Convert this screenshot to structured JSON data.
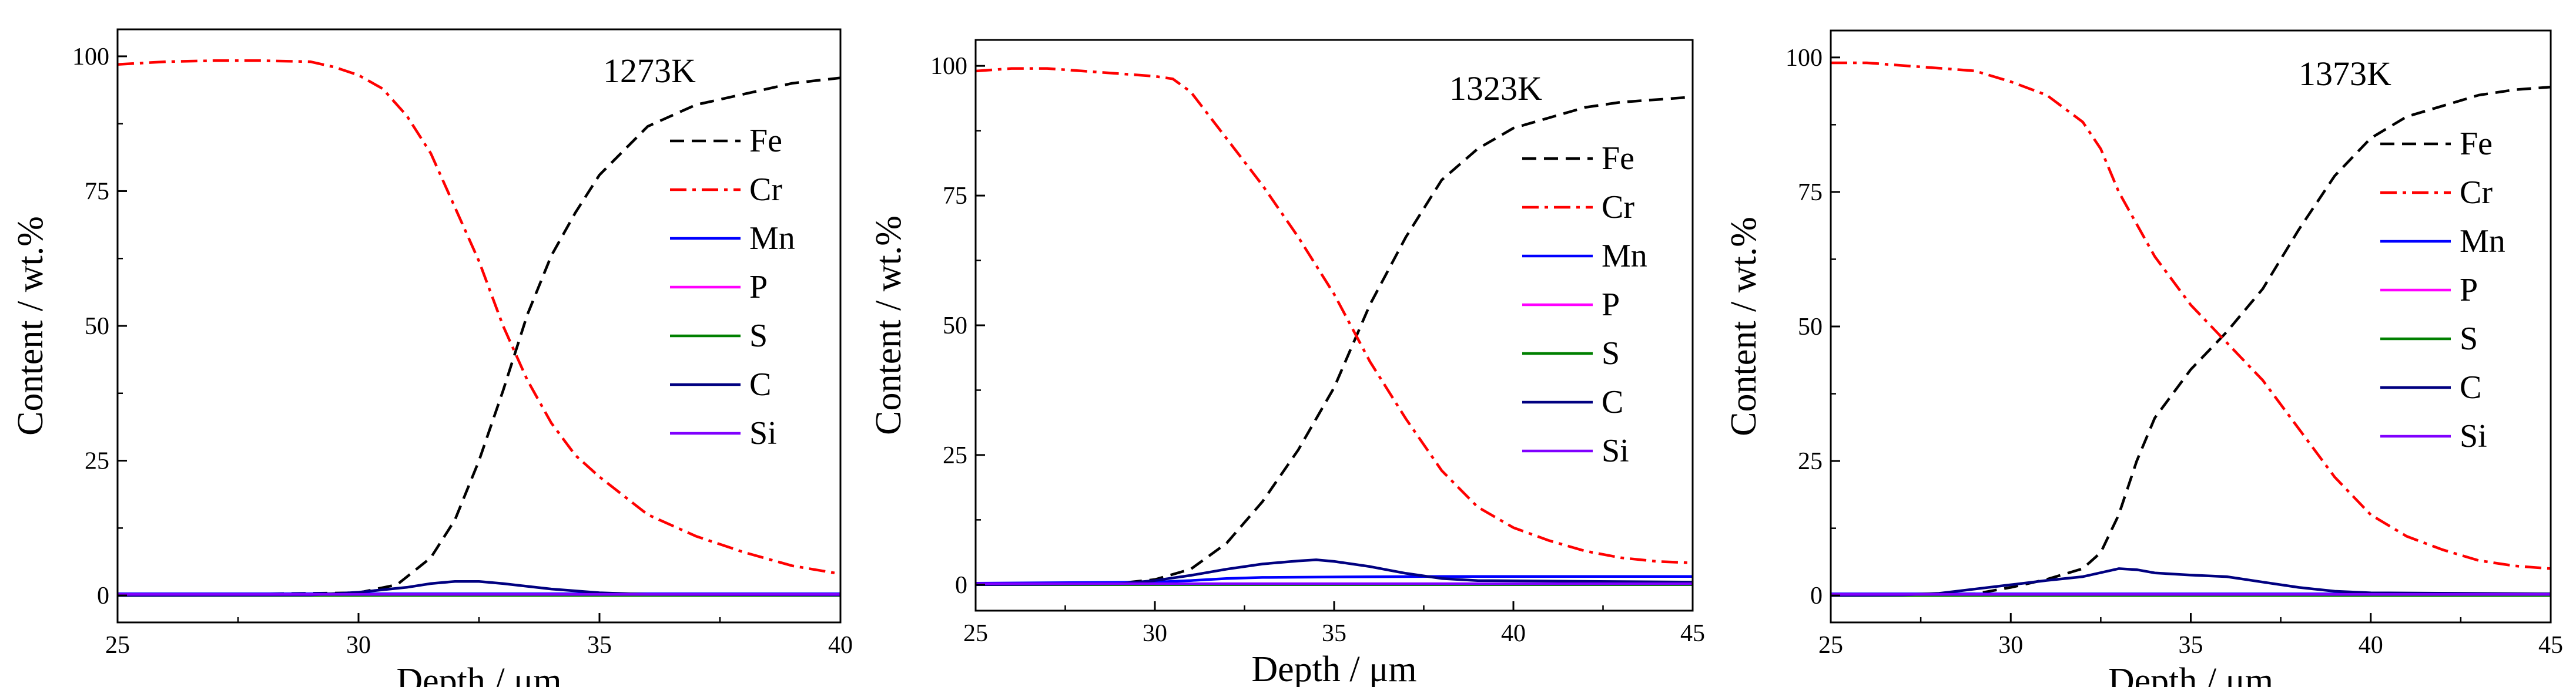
{
  "chart_data": [
    {
      "type": "line",
      "annotation": "1273K",
      "xlabel": "Depth / μm",
      "ylabel": "Content / wt.%",
      "xlim": [
        25,
        40
      ],
      "ylim": [
        -5,
        105
      ],
      "xticks": [
        25,
        30,
        35,
        40
      ],
      "yticks": [
        0,
        25,
        50,
        75,
        100
      ],
      "legend_position": "right",
      "series": [
        {
          "name": "Fe",
          "color": "#000000",
          "style": "dash",
          "points": [
            [
              25,
              0
            ],
            [
              30,
              0.5
            ],
            [
              30.8,
              2
            ],
            [
              31.5,
              7
            ],
            [
              32,
              14
            ],
            [
              32.5,
              25
            ],
            [
              33,
              38
            ],
            [
              33.5,
              52
            ],
            [
              34,
              63
            ],
            [
              34.5,
              71
            ],
            [
              35,
              78
            ],
            [
              36,
              87
            ],
            [
              37,
              91
            ],
            [
              38,
              93
            ],
            [
              39,
              95
            ],
            [
              40,
              96
            ]
          ]
        },
        {
          "name": "Cr",
          "color": "#ff0000",
          "style": "dashdot",
          "points": [
            [
              25,
              98.5
            ],
            [
              26,
              99
            ],
            [
              27,
              99.2
            ],
            [
              28,
              99.2
            ],
            [
              29,
              99
            ],
            [
              29.5,
              98
            ],
            [
              30,
              96.5
            ],
            [
              30.5,
              94
            ],
            [
              31,
              89
            ],
            [
              31.5,
              82
            ],
            [
              32,
              72
            ],
            [
              32.5,
              62
            ],
            [
              33,
              50
            ],
            [
              33.5,
              40
            ],
            [
              34,
              32
            ],
            [
              34.5,
              26
            ],
            [
              35,
              22
            ],
            [
              36,
              15
            ],
            [
              37,
              11
            ],
            [
              38,
              8
            ],
            [
              39,
              5.5
            ],
            [
              40,
              4
            ]
          ]
        },
        {
          "name": "Mn",
          "color": "#0000ff",
          "style": "solid",
          "points": [
            [
              25,
              0.3
            ],
            [
              30,
              0.3
            ],
            [
              35,
              0.3
            ],
            [
              40,
              0.3
            ]
          ]
        },
        {
          "name": "P",
          "color": "#ff00ff",
          "style": "solid",
          "points": [
            [
              25,
              0.1
            ],
            [
              40,
              0.1
            ]
          ]
        },
        {
          "name": "S",
          "color": "#008000",
          "style": "solid",
          "points": [
            [
              25,
              0
            ],
            [
              40,
              0
            ]
          ]
        },
        {
          "name": "C",
          "color": "#000080",
          "style": "solid",
          "points": [
            [
              25,
              0
            ],
            [
              29,
              0.1
            ],
            [
              30,
              0.6
            ],
            [
              31,
              1.5
            ],
            [
              31.5,
              2.2
            ],
            [
              32,
              2.6
            ],
            [
              32.5,
              2.6
            ],
            [
              33,
              2.2
            ],
            [
              34,
              1.2
            ],
            [
              35,
              0.5
            ],
            [
              36,
              0.2
            ],
            [
              40,
              0.1
            ]
          ]
        },
        {
          "name": "Si",
          "color": "#8000ff",
          "style": "solid",
          "points": [
            [
              25,
              0.2
            ],
            [
              40,
              0.2
            ]
          ]
        }
      ]
    },
    {
      "type": "line",
      "annotation": "1323K",
      "xlabel": "Depth / μm",
      "ylabel": "Content / wt.%",
      "xlim": [
        25,
        45
      ],
      "ylim": [
        -5,
        105
      ],
      "xticks": [
        25,
        30,
        35,
        40,
        45
      ],
      "yticks": [
        0,
        25,
        50,
        75,
        100
      ],
      "legend_position": "right",
      "series": [
        {
          "name": "Fe",
          "color": "#000000",
          "style": "dash",
          "points": [
            [
              25,
              0
            ],
            [
              29,
              0.3
            ],
            [
              30,
              1
            ],
            [
              31,
              3
            ],
            [
              32,
              8
            ],
            [
              33,
              16
            ],
            [
              34,
              26
            ],
            [
              35,
              38
            ],
            [
              36,
              54
            ],
            [
              37,
              67
            ],
            [
              38,
              78
            ],
            [
              39,
              84
            ],
            [
              40,
              88
            ],
            [
              41,
              90
            ],
            [
              42,
              92
            ],
            [
              43,
              93
            ],
            [
              44,
              93.5
            ],
            [
              45,
              94
            ]
          ]
        },
        {
          "name": "Cr",
          "color": "#ff0000",
          "style": "dashdot",
          "points": [
            [
              25,
              99
            ],
            [
              26,
              99.5
            ],
            [
              27,
              99.5
            ],
            [
              28,
              99
            ],
            [
              29,
              98.5
            ],
            [
              30,
              98
            ],
            [
              30.5,
              97.5
            ],
            [
              31,
              95
            ],
            [
              32,
              86
            ],
            [
              33,
              77
            ],
            [
              34,
              67
            ],
            [
              35,
              56
            ],
            [
              36,
              43
            ],
            [
              37,
              32
            ],
            [
              38,
              22
            ],
            [
              39,
              15
            ],
            [
              40,
              11
            ],
            [
              41,
              8.5
            ],
            [
              42,
              6.5
            ],
            [
              43,
              5.2
            ],
            [
              44,
              4.5
            ],
            [
              45,
              4.2
            ]
          ]
        },
        {
          "name": "Mn",
          "color": "#0000ff",
          "style": "solid",
          "points": [
            [
              25,
              0.3
            ],
            [
              30,
              0.5
            ],
            [
              31,
              0.8
            ],
            [
              32,
              1.2
            ],
            [
              33,
              1.4
            ],
            [
              35,
              1.5
            ],
            [
              38,
              1.6
            ],
            [
              40,
              1.6
            ],
            [
              45,
              1.6
            ]
          ]
        },
        {
          "name": "P",
          "color": "#ff00ff",
          "style": "solid",
          "points": [
            [
              25,
              0.1
            ],
            [
              45,
              0.1
            ]
          ]
        },
        {
          "name": "S",
          "color": "#008000",
          "style": "solid",
          "points": [
            [
              25,
              0
            ],
            [
              45,
              0
            ]
          ]
        },
        {
          "name": "C",
          "color": "#000080",
          "style": "solid",
          "points": [
            [
              25,
              0
            ],
            [
              29,
              0.2
            ],
            [
              30,
              0.8
            ],
            [
              31,
              1.8
            ],
            [
              32,
              3
            ],
            [
              33,
              4
            ],
            [
              34,
              4.6
            ],
            [
              34.5,
              4.8
            ],
            [
              35,
              4.5
            ],
            [
              36,
              3.5
            ],
            [
              37,
              2.2
            ],
            [
              38,
              1.2
            ],
            [
              39,
              0.8
            ],
            [
              45,
              0.5
            ]
          ]
        },
        {
          "name": "Si",
          "color": "#8000ff",
          "style": "solid",
          "points": [
            [
              25,
              0.2
            ],
            [
              45,
              0.2
            ]
          ]
        }
      ]
    },
    {
      "type": "line",
      "annotation": "1373K",
      "xlabel": "Depth / μm",
      "ylabel": "Content / wt.%",
      "xlim": [
        25,
        45
      ],
      "ylim": [
        -5,
        105
      ],
      "xticks": [
        25,
        30,
        35,
        40,
        45
      ],
      "yticks": [
        0,
        25,
        50,
        75,
        100
      ],
      "legend_position": "right",
      "series": [
        {
          "name": "Fe",
          "color": "#000000",
          "style": "dash",
          "points": [
            [
              25,
              0
            ],
            [
              29,
              0.3
            ],
            [
              30,
              1.5
            ],
            [
              31,
              3
            ],
            [
              32,
              5
            ],
            [
              32.5,
              8
            ],
            [
              33,
              15
            ],
            [
              33.5,
              25
            ],
            [
              34,
              33
            ],
            [
              35,
              42
            ],
            [
              36,
              49
            ],
            [
              37,
              57
            ],
            [
              38,
              68
            ],
            [
              39,
              78
            ],
            [
              40,
              85
            ],
            [
              41,
              89
            ],
            [
              42,
              91
            ],
            [
              43,
              93
            ],
            [
              44,
              94
            ],
            [
              45,
              94.5
            ]
          ]
        },
        {
          "name": "Cr",
          "color": "#ff0000",
          "style": "dashdot",
          "points": [
            [
              25,
              99
            ],
            [
              26,
              99
            ],
            [
              27,
              98.5
            ],
            [
              28,
              98
            ],
            [
              29,
              97.5
            ],
            [
              30,
              95.5
            ],
            [
              31,
              93
            ],
            [
              32,
              88
            ],
            [
              32.5,
              83
            ],
            [
              33,
              75
            ],
            [
              34,
              63
            ],
            [
              35,
              54
            ],
            [
              36,
              47
            ],
            [
              37,
              40
            ],
            [
              38,
              31
            ],
            [
              39,
              22
            ],
            [
              40,
              15
            ],
            [
              41,
              11
            ],
            [
              42,
              8.5
            ],
            [
              43,
              6.5
            ],
            [
              44,
              5.5
            ],
            [
              45,
              5
            ]
          ]
        },
        {
          "name": "Mn",
          "color": "#0000ff",
          "style": "solid",
          "points": [
            [
              25,
              0.3
            ],
            [
              45,
              0.3
            ]
          ]
        },
        {
          "name": "P",
          "color": "#ff00ff",
          "style": "solid",
          "points": [
            [
              25,
              0.1
            ],
            [
              45,
              0.1
            ]
          ]
        },
        {
          "name": "S",
          "color": "#008000",
          "style": "solid",
          "points": [
            [
              25,
              0
            ],
            [
              45,
              0
            ]
          ]
        },
        {
          "name": "C",
          "color": "#000080",
          "style": "solid",
          "points": [
            [
              25,
              0
            ],
            [
              27,
              0.1
            ],
            [
              28,
              0.4
            ],
            [
              29,
              1.2
            ],
            [
              30,
              2
            ],
            [
              31,
              2.8
            ],
            [
              32,
              3.5
            ],
            [
              33,
              5
            ],
            [
              33.5,
              4.8
            ],
            [
              34,
              4.2
            ],
            [
              35,
              3.8
            ],
            [
              36,
              3.5
            ],
            [
              37,
              2.5
            ],
            [
              38,
              1.5
            ],
            [
              39,
              0.8
            ],
            [
              40,
              0.5
            ],
            [
              45,
              0.3
            ]
          ]
        },
        {
          "name": "Si",
          "color": "#8000ff",
          "style": "solid",
          "points": [
            [
              25,
              0.2
            ],
            [
              45,
              0.2
            ]
          ]
        }
      ]
    }
  ]
}
